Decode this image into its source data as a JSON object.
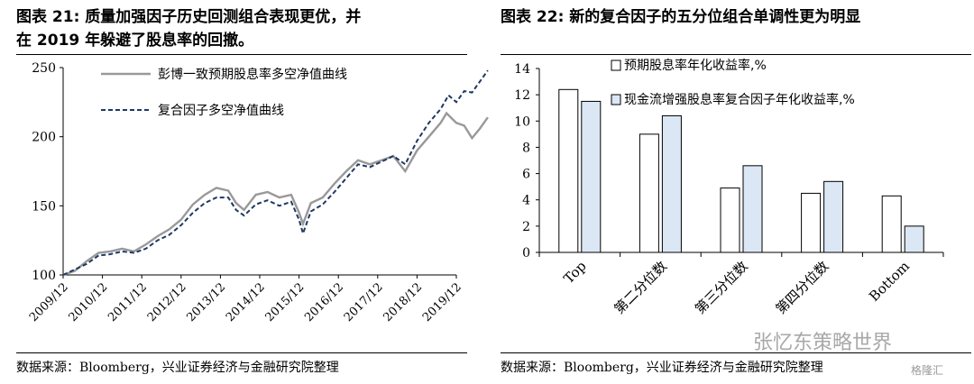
{
  "left": {
    "title_line1": "图表 21:  质量加强因子历史回测组合表现更优，并",
    "title_line2": "在 2019 年躲避了股息率的回撤。",
    "source": "数据来源：Bloomberg，兴业证券经济与金融研究院整理"
  },
  "right": {
    "title": "图表 22:  新的复合因子的五分位组合单调性更为明显",
    "source": "数据来源：Bloomberg，兴业证券经济与金融研究院整理"
  },
  "watermark": "张忆东策略世界",
  "watermark2": "格隆汇",
  "colors": {
    "gray_line": "#999999",
    "navy_line": "#1f3864",
    "bar_white": "#ffffff",
    "bar_blue": "#dbe7f4"
  },
  "chart_data": [
    {
      "type": "line",
      "ylim": [
        100,
        250
      ],
      "yticks": [
        100,
        150,
        200,
        250
      ],
      "xticks": [
        "2009/12",
        "2010/12",
        "2011/12",
        "2012/12",
        "2013/12",
        "2014/12",
        "2015/12",
        "2016/12",
        "2017/12",
        "2018/12",
        "2019/12"
      ],
      "legend_position": "top-left",
      "series": [
        {
          "name": "彭博一致预期股息率多空净值曲线",
          "style": "solid",
          "points": [
            [
              0,
              100
            ],
            [
              0.3,
              103
            ],
            [
              0.6,
              110
            ],
            [
              0.9,
              116
            ],
            [
              1.2,
              117
            ],
            [
              1.5,
              119
            ],
            [
              1.8,
              117
            ],
            [
              2.1,
              122
            ],
            [
              2.4,
              128
            ],
            [
              2.7,
              133
            ],
            [
              3.0,
              140
            ],
            [
              3.3,
              151
            ],
            [
              3.6,
              158
            ],
            [
              3.9,
              163
            ],
            [
              4.2,
              161
            ],
            [
              4.4,
              152
            ],
            [
              4.6,
              147
            ],
            [
              4.9,
              158
            ],
            [
              5.2,
              160
            ],
            [
              5.5,
              156
            ],
            [
              5.8,
              158
            ],
            [
              6.0,
              145
            ],
            [
              6.1,
              137
            ],
            [
              6.3,
              152
            ],
            [
              6.6,
              156
            ],
            [
              6.9,
              166
            ],
            [
              7.2,
              175
            ],
            [
              7.5,
              183
            ],
            [
              7.8,
              180
            ],
            [
              8.1,
              183
            ],
            [
              8.4,
              186
            ],
            [
              8.7,
              175
            ],
            [
              9.0,
              190
            ],
            [
              9.3,
              200
            ],
            [
              9.6,
              210
            ],
            [
              9.75,
              217
            ],
            [
              10.0,
              210
            ],
            [
              10.2,
              208
            ],
            [
              10.4,
              199
            ],
            [
              10.6,
              206
            ],
            [
              10.8,
              214
            ]
          ]
        },
        {
          "name": "复合因子多空净值曲线",
          "style": "dashed",
          "points": [
            [
              0,
              100
            ],
            [
              0.3,
              104
            ],
            [
              0.6,
              108
            ],
            [
              0.9,
              114
            ],
            [
              1.2,
              115
            ],
            [
              1.5,
              117
            ],
            [
              1.8,
              116
            ],
            [
              2.1,
              119
            ],
            [
              2.4,
              125
            ],
            [
              2.7,
              129
            ],
            [
              3.0,
              136
            ],
            [
              3.3,
              145
            ],
            [
              3.6,
              152
            ],
            [
              3.9,
              156
            ],
            [
              4.2,
              156
            ],
            [
              4.4,
              147
            ],
            [
              4.6,
              143
            ],
            [
              4.9,
              151
            ],
            [
              5.2,
              154
            ],
            [
              5.5,
              150
            ],
            [
              5.8,
              153
            ],
            [
              6.0,
              140
            ],
            [
              6.1,
              130
            ],
            [
              6.3,
              146
            ],
            [
              6.6,
              151
            ],
            [
              6.9,
              160
            ],
            [
              7.2,
              170
            ],
            [
              7.5,
              180
            ],
            [
              7.8,
              178
            ],
            [
              8.1,
              182
            ],
            [
              8.4,
              186
            ],
            [
              8.7,
              180
            ],
            [
              9.0,
              197
            ],
            [
              9.3,
              210
            ],
            [
              9.6,
              220
            ],
            [
              9.8,
              230
            ],
            [
              10.0,
              225
            ],
            [
              10.2,
              233
            ],
            [
              10.4,
              232
            ],
            [
              10.6,
              240
            ],
            [
              10.8,
              248
            ]
          ]
        }
      ]
    },
    {
      "type": "bar",
      "ylim": [
        0,
        14
      ],
      "yticks": [
        0,
        2,
        4,
        6,
        8,
        10,
        12,
        14
      ],
      "categories": [
        "Top",
        "第二分位数",
        "第三分位数",
        "第四分位数",
        "Bottom"
      ],
      "legend_position": "top-right",
      "series": [
        {
          "name": "预期股息率年化收益率,%",
          "values": [
            12.4,
            9.0,
            4.9,
            4.5,
            4.3
          ]
        },
        {
          "name": "现金流增强股息率复合因子年化收益率,%",
          "values": [
            11.5,
            10.4,
            6.6,
            5.4,
            2.0
          ]
        }
      ]
    }
  ]
}
